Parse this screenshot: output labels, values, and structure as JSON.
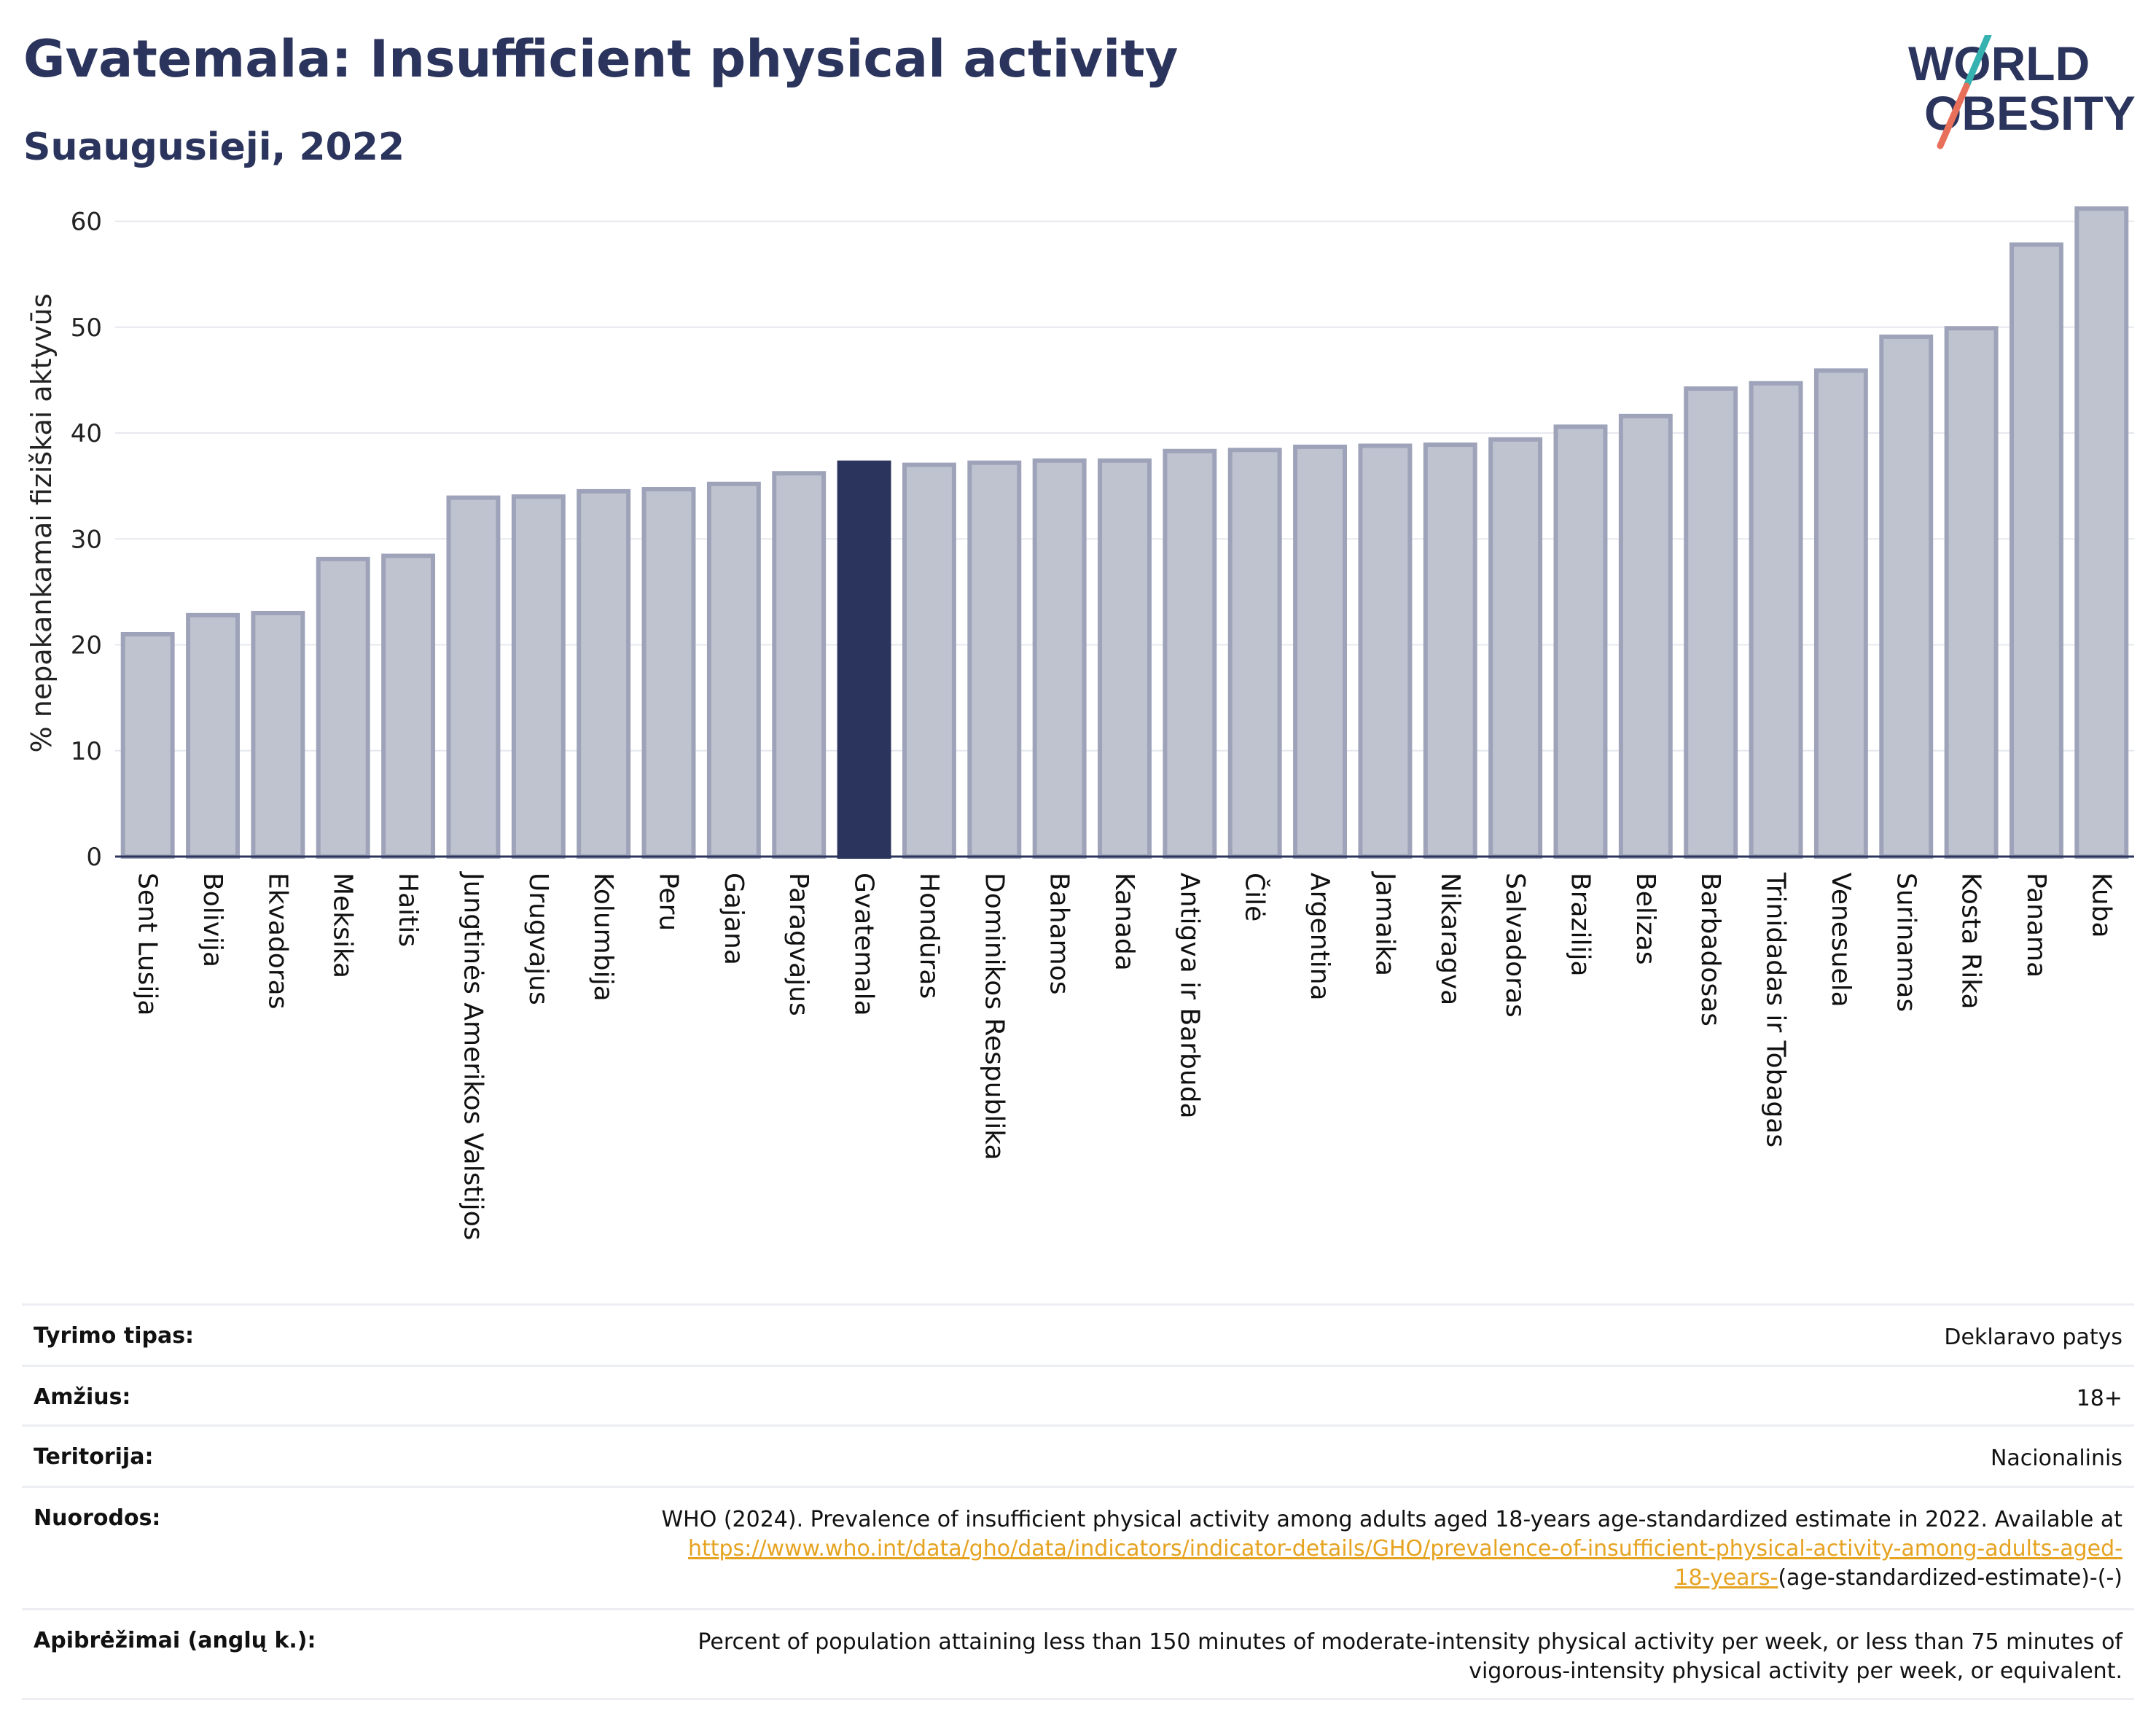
{
  "header": {
    "title": "Gvatemala: Insufficient physical activity",
    "subtitle": "Suaugusieji, 2022"
  },
  "logo": {
    "line1": "WORLD",
    "line2": "OBESITY",
    "colors": {
      "text": "#2b345c",
      "slash_top": "#36b3b0",
      "slash_bottom": "#e8705a"
    }
  },
  "colors": {
    "bar": "#bfc3d0",
    "bar_border": "#9ea3b9",
    "highlight": "#2b345c",
    "grid": "#e6e8ef",
    "axis": "#2b345c",
    "link": "#e6a321"
  },
  "chart_data": {
    "type": "bar",
    "title": "Gvatemala: Insufficient physical activity",
    "subtitle": "Suaugusieji, 2022",
    "ylabel": "% nepakankamai fiziškai aktyvūs",
    "xlabel": "",
    "ylim": [
      0,
      63
    ],
    "yticks": [
      0,
      10,
      20,
      30,
      40,
      50,
      60
    ],
    "grid": true,
    "highlight": "Gvatemala",
    "categories": [
      "Sent Lusija",
      "Bolivija",
      "Ekvadoras",
      "Meksika",
      "Haitis",
      "Jungtinės Amerikos Valstijos",
      "Urugvajus",
      "Kolumbija",
      "Peru",
      "Gajana",
      "Paragvajus",
      "Gvatemala",
      "Hondūras",
      "Dominikos Respublika",
      "Bahamos",
      "Kanada",
      "Antigva ir Barbuda",
      "Čilė",
      "Argentina",
      "Jamaika",
      "Nikaragva",
      "Salvadoras",
      "Brazilija",
      "Belizas",
      "Barbadosas",
      "Trinidadas ir Tobagas",
      "Venesuela",
      "Surinamas",
      "Kosta Rika",
      "Panama",
      "Kuba"
    ],
    "values": [
      21.0,
      22.8,
      23.0,
      28.1,
      28.4,
      33.9,
      34.0,
      34.5,
      34.7,
      35.2,
      36.2,
      37.2,
      37.0,
      37.2,
      37.4,
      37.4,
      38.3,
      38.4,
      38.7,
      38.8,
      38.9,
      39.4,
      40.6,
      41.6,
      44.2,
      44.7,
      45.9,
      49.1,
      49.9,
      57.8,
      61.2
    ]
  },
  "details": {
    "rows": [
      {
        "label": "Tyrimo tipas:",
        "value": "Deklaravo patys"
      },
      {
        "label": "Amžius:",
        "value": "18+"
      },
      {
        "label": "Teritorija:",
        "value": "Nacionalinis"
      }
    ],
    "references": {
      "label": "Nuorodos:",
      "text": "WHO (2024). Prevalence of insufficient physical activity among adults aged 18-years age-standardized estimate in 2022. Available at",
      "link_line1": "https://www.who.int/data/gho/data/indicators/indicator-details/GHO/prevalence-of-insufficient-physical-activity-among-adults-aged-",
      "link_line2": "18-years-",
      "suffix": "(age-standardized-estimate)-(-)"
    },
    "definitions": {
      "label": "Apibrėžimai (anglų k.):",
      "line1": "Percent of population attaining less than 150 minutes of moderate-intensity physical activity per week, or less than 75 minutes of",
      "line2": "vigorous-intensity physical activity per week, or equivalent."
    }
  }
}
